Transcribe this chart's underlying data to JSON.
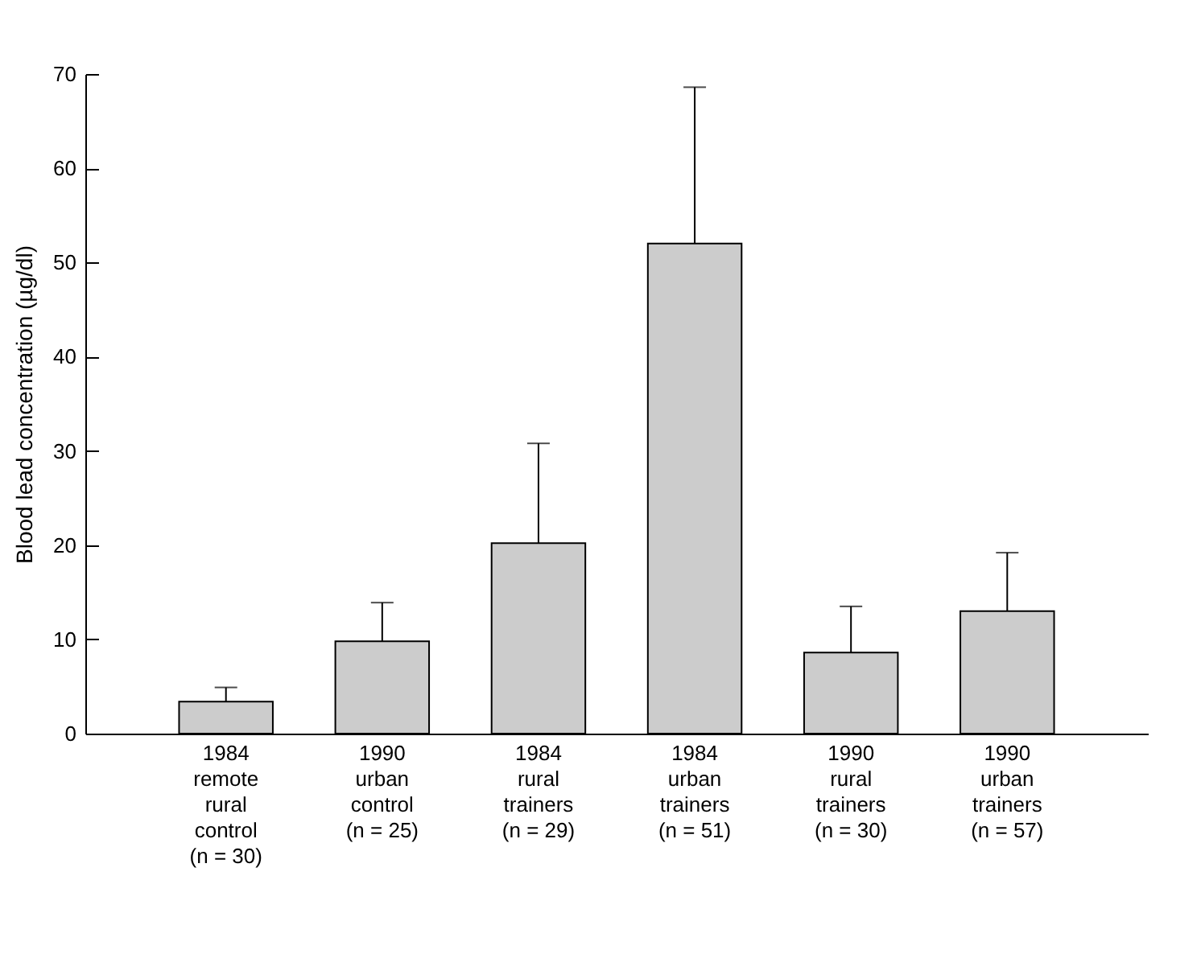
{
  "chart_data": {
    "type": "bar",
    "ylabel": "Blood lead concentration (µg/dl)",
    "categories": [
      "1984\nremote\nrural\ncontrol\n(n = 30)",
      "1990\nurban\ncontrol\n(n = 25)",
      "1984\nrural\ntrainers\n(n = 29)",
      "1984\nurban\ntrainers\n(n = 51)",
      "1990\nrural\ntrainers\n(n = 30)",
      "1990\nurban\ntrainers\n(n = 57)"
    ],
    "values": [
      3.4,
      9.8,
      20.2,
      52.0,
      8.6,
      13.0
    ],
    "errors": [
      [
        3.4,
        4.9
      ],
      [
        9.8,
        13.9
      ],
      [
        20.2,
        30.8
      ],
      [
        52.0,
        68.6
      ],
      [
        8.6,
        13.5
      ],
      [
        13.0,
        19.2
      ]
    ],
    "color": "#cccccc",
    "ylim": [
      0,
      70
    ],
    "yticks": [
      0,
      10,
      20,
      30,
      40,
      50,
      60,
      70
    ],
    "grid": false
  }
}
